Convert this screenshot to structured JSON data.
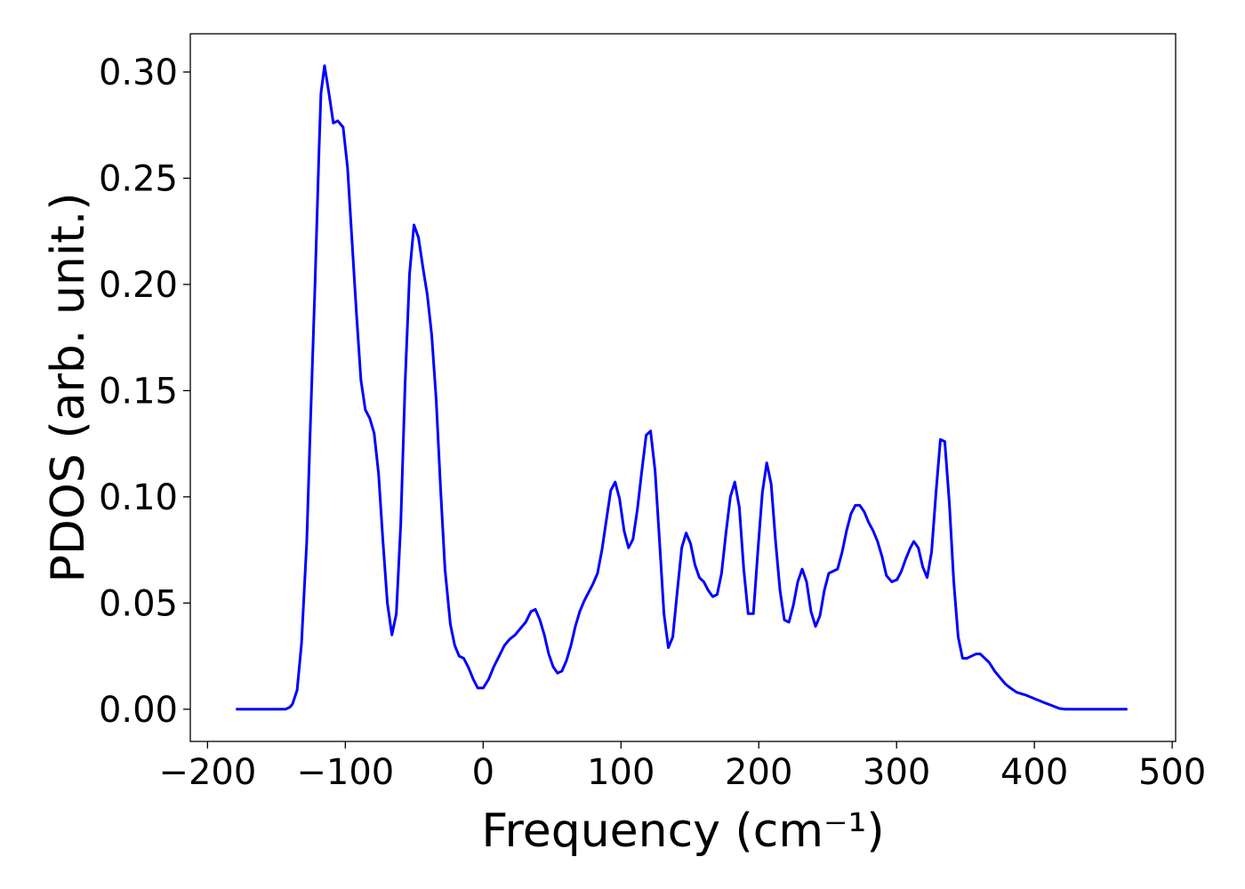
{
  "chart_data": {
    "type": "line",
    "x_label": "Frequency (cm⁻¹)",
    "y_label": "PDOS (arb. unit.)",
    "xlim": [
      -212.5,
      502.5
    ],
    "ylim": [
      -0.01515,
      0.318
    ],
    "xticks": [
      {
        "value": -200,
        "label": "−200"
      },
      {
        "value": -100,
        "label": "−100"
      },
      0,
      100,
      200,
      300,
      400,
      500
    ],
    "yticks": [
      {
        "value": 0,
        "label": "0.00"
      },
      {
        "value": 0.05,
        "label": "0.05"
      },
      {
        "value": 0.1,
        "label": "0.10"
      },
      {
        "value": 0.15,
        "label": "0.15"
      },
      {
        "value": 0.2,
        "label": "0.20"
      },
      {
        "value": 0.25,
        "label": "0.25"
      },
      {
        "value": 0.3,
        "label": "0.30"
      }
    ],
    "grid": false,
    "x": [
      -179.4,
      -143.4,
      -140.2,
      -138.3,
      -135,
      -131.8,
      -128,
      -125.4,
      -122.2,
      -119,
      -117.7,
      -115.1,
      -111.9,
      -108.7,
      -105.5,
      -101.6,
      -98.4,
      -95.2,
      -92,
      -88.7,
      -85.5,
      -82.3,
      -79.1,
      -75.9,
      -72.7,
      -69.5,
      -66.2,
      -63,
      -59.8,
      -56.6,
      -53.4,
      -50.2,
      -46.9,
      -43.7,
      -40.5,
      -37.3,
      -34.1,
      -30.9,
      -27.7,
      -23.8,
      -20.6,
      -17.4,
      -14.1,
      -10.9,
      -7.1,
      -3.9,
      0,
      3.9,
      7.7,
      11.6,
      15.4,
      19.3,
      23.2,
      27,
      30.9,
      34.7,
      37.9,
      41.2,
      44.4,
      47.6,
      50.8,
      54,
      57.2,
      60.5,
      63.7,
      66.9,
      70.1,
      73.3,
      76.5,
      79.7,
      83,
      86.2,
      89.4,
      92.6,
      95.8,
      99,
      102.3,
      105.5,
      108.7,
      111.9,
      115.1,
      118.3,
      121.5,
      124.8,
      128,
      131.2,
      134.4,
      137.6,
      140.8,
      144.1,
      147.3,
      150.5,
      153.7,
      156.9,
      160.1,
      163.3,
      166.6,
      169.8,
      173,
      176.2,
      179.4,
      182.6,
      185.9,
      189.1,
      192.3,
      196.1,
      199.4,
      202.6,
      205.8,
      209,
      212.2,
      215.4,
      218.6,
      221.9,
      225.1,
      228.3,
      231.5,
      234.7,
      237.9,
      241.2,
      244.4,
      247.6,
      250.8,
      254,
      257.2,
      260.5,
      263.7,
      266.9,
      270.1,
      273.3,
      276.5,
      279.7,
      283,
      286.2,
      289.4,
      292.6,
      296.5,
      300.3,
      303.5,
      306.8,
      310,
      312.5,
      315.8,
      319,
      322.2,
      325.4,
      328.6,
      331.8,
      335,
      338.3,
      341.5,
      344.7,
      347.9,
      351.1,
      354.3,
      357.6,
      360.8,
      364,
      367.2,
      371.1,
      374.9,
      378.8,
      382.6,
      387.1,
      393.6,
      400,
      406.4,
      412.9,
      418,
      422.5,
      467.5
    ],
    "series": [
      {
        "color": "#0000ff",
        "values": [
          0,
          0,
          0.001,
          0.0025,
          0.009,
          0.031,
          0.079,
          0.133,
          0.196,
          0.265,
          0.29,
          0.303,
          0.29,
          0.276,
          0.277,
          0.274,
          0.255,
          0.221,
          0.187,
          0.155,
          0.141,
          0.137,
          0.13,
          0.111,
          0.079,
          0.05,
          0.035,
          0.045,
          0.087,
          0.154,
          0.205,
          0.228,
          0.222,
          0.208,
          0.195,
          0.176,
          0.146,
          0.104,
          0.066,
          0.04,
          0.03,
          0.025,
          0.024,
          0.02,
          0.014,
          0.01,
          0.01,
          0.014,
          0.02,
          0.025,
          0.03,
          0.033,
          0.035,
          0.038,
          0.041,
          0.046,
          0.047,
          0.042,
          0.035,
          0.026,
          0.02,
          0.017,
          0.018,
          0.023,
          0.03,
          0.039,
          0.046,
          0.051,
          0.055,
          0.059,
          0.064,
          0.075,
          0.089,
          0.103,
          0.107,
          0.099,
          0.084,
          0.076,
          0.08,
          0.094,
          0.112,
          0.129,
          0.131,
          0.112,
          0.079,
          0.045,
          0.029,
          0.034,
          0.055,
          0.076,
          0.083,
          0.078,
          0.068,
          0.062,
          0.06,
          0.056,
          0.053,
          0.054,
          0.064,
          0.083,
          0.1,
          0.107,
          0.095,
          0.066,
          0.045,
          0.045,
          0.075,
          0.102,
          0.116,
          0.106,
          0.079,
          0.056,
          0.042,
          0.041,
          0.049,
          0.06,
          0.066,
          0.06,
          0.046,
          0.039,
          0.044,
          0.056,
          0.064,
          0.065,
          0.066,
          0.074,
          0.084,
          0.092,
          0.096,
          0.096,
          0.093,
          0.088,
          0.084,
          0.079,
          0.072,
          0.063,
          0.06,
          0.061,
          0.065,
          0.071,
          0.076,
          0.079,
          0.076,
          0.067,
          0.062,
          0.074,
          0.102,
          0.127,
          0.126,
          0.097,
          0.06,
          0.034,
          0.024,
          0.024,
          0.025,
          0.026,
          0.026,
          0.024,
          0.022,
          0.018,
          0.015,
          0.012,
          0.01,
          0.008,
          0.0067,
          0.005,
          0.0033,
          0.0017,
          0.0004,
          0,
          0
        ]
      }
    ]
  }
}
